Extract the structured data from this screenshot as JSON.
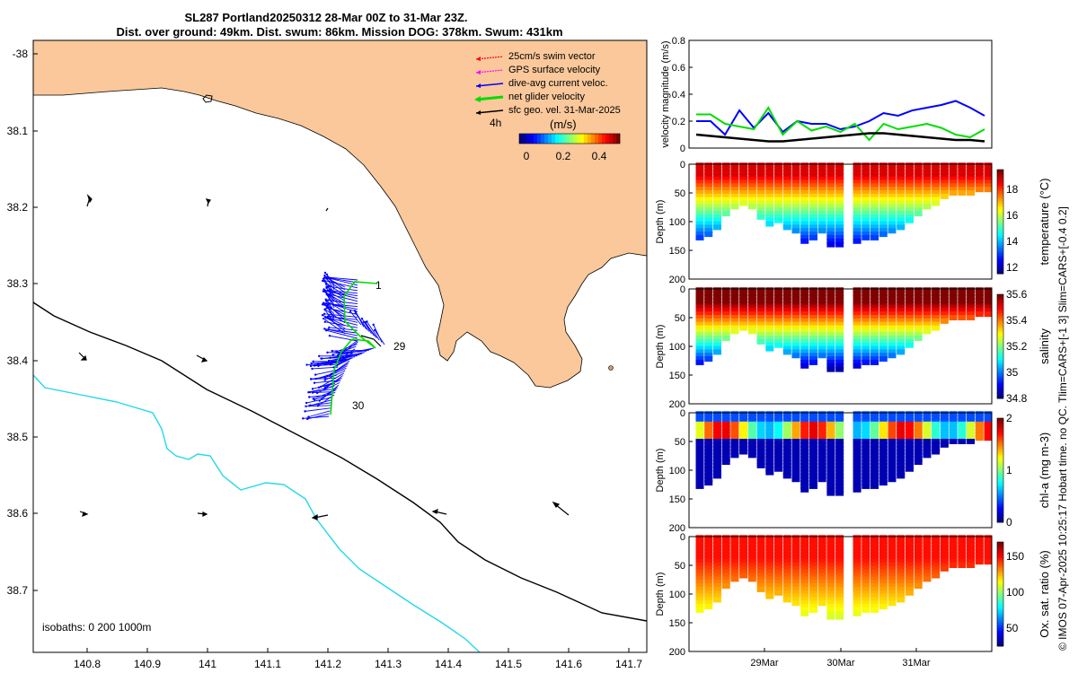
{
  "title": {
    "line1": "SL287 Portland20250312 28-Mar 00Z to 31-Mar 23Z.",
    "line2": "Dist. over ground: 49km. Dist. swum: 86km. Mission DOG: 378km. Swum: 431km"
  },
  "map": {
    "x_ticks": [
      "140.8",
      "140.9",
      "141",
      "141.1",
      "141.2",
      "141.3",
      "141.4",
      "141.5",
      "141.6",
      "141.7"
    ],
    "y_ticks": [
      "-38",
      "38.1",
      "38.2",
      "38.3",
      "38.4",
      "38.5",
      "38.6",
      "38.7"
    ],
    "legend": [
      "25cm/s swim vector",
      "GPS surface velocity",
      "dive-avg current veloc.",
      "net glider velocity",
      "sfc geo. vel. 31-Mar-2025"
    ],
    "legend_colors": [
      "#ff0000",
      "#ff00ff",
      "#0000ff",
      "#00dd00",
      "#000000"
    ],
    "time_step": "4h",
    "colorbar_title": "(m/s)",
    "colorbar_ticks": [
      "0",
      "0.2",
      "0.4"
    ],
    "isobaths": "isobaths: 0   200  1000m",
    "day_labels": [
      "1",
      "29",
      "30"
    ]
  },
  "chart_data": [
    {
      "type": "line",
      "ylabel": "velocity magnitude (m/s)",
      "ylim": [
        0,
        0.8
      ],
      "yticks": [
        "0",
        "0.2",
        "0.4",
        "0.6",
        "0.8"
      ],
      "x": [
        0,
        0.05,
        0.1,
        0.15,
        0.2,
        0.25,
        0.3,
        0.35,
        0.4,
        0.45,
        0.5,
        0.55,
        0.6,
        0.65,
        0.7,
        0.75,
        0.8,
        0.85,
        0.9,
        0.95,
        1
      ],
      "series": [
        {
          "name": "dive-avg current",
          "color": "#0000ff",
          "values": [
            0.2,
            0.2,
            0.1,
            0.28,
            0.15,
            0.26,
            0.12,
            0.2,
            0.18,
            0.18,
            0.14,
            0.16,
            0.2,
            0.26,
            0.24,
            0.28,
            0.3,
            0.32,
            0.35,
            0.3,
            0.24
          ]
        },
        {
          "name": "net glider",
          "color": "#00dd00",
          "values": [
            0.25,
            0.25,
            0.18,
            0.16,
            0.14,
            0.3,
            0.1,
            0.2,
            0.13,
            0.16,
            0.12,
            0.18,
            0.06,
            0.18,
            0.14,
            0.16,
            0.18,
            0.15,
            0.1,
            0.08,
            0.14
          ]
        },
        {
          "name": "sfc geo",
          "color": "#000000",
          "values": [
            0.1,
            0.09,
            0.08,
            0.07,
            0.06,
            0.05,
            0.05,
            0.06,
            0.07,
            0.08,
            0.09,
            0.1,
            0.11,
            0.11,
            0.1,
            0.09,
            0.08,
            0.07,
            0.06,
            0.06,
            0.05
          ]
        }
      ]
    },
    {
      "type": "scatter",
      "ylabel": "Depth (m)",
      "yticks": [
        "0",
        "50",
        "100",
        "150",
        "200"
      ],
      "colorbar_label": "temperature (°C)",
      "cticks": [
        "12",
        "14",
        "16",
        "18"
      ],
      "crange": [
        11.5,
        19.5
      ]
    },
    {
      "type": "scatter",
      "ylabel": "Depth (m)",
      "yticks": [
        "0",
        "50",
        "100",
        "150",
        "200"
      ],
      "colorbar_label": "salinity",
      "cticks": [
        "34.8",
        "35",
        "35.2",
        "35.4",
        "35.6"
      ],
      "crange": [
        34.8,
        35.6
      ]
    },
    {
      "type": "scatter",
      "ylabel": "Depth (m)",
      "yticks": [
        "0",
        "50",
        "100",
        "150",
        "200"
      ],
      "colorbar_label": "chl-a (mg m-3)",
      "cticks": [
        "0",
        "1",
        "2"
      ],
      "crange": [
        0,
        2
      ]
    },
    {
      "type": "scatter",
      "ylabel": "Depth (m)",
      "yticks": [
        "0",
        "50",
        "100",
        "150",
        "200"
      ],
      "colorbar_label": "Ox. sat. ratio (%)",
      "cticks": [
        "50",
        "100",
        "150"
      ],
      "crange": [
        25,
        170
      ]
    }
  ],
  "time_axis": [
    "29Mar",
    "30Mar",
    "31Mar"
  ],
  "footer": "© IMOS 07-Apr-2025 10:25:17 Hobart time. no QC. Tlim=CARS+[-1 3] Slim=CARS+[-0.4 0.2]"
}
